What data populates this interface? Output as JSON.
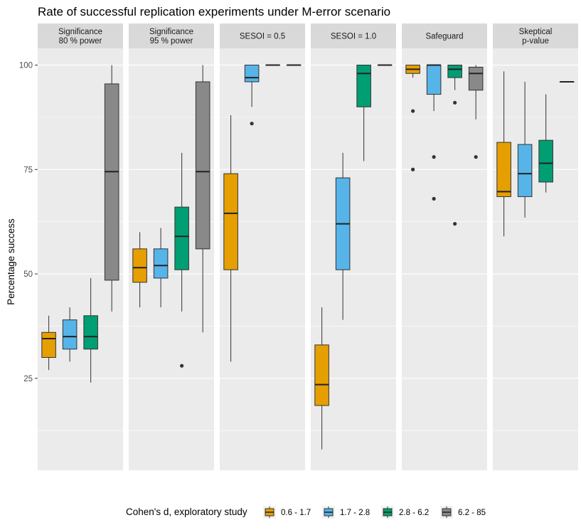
{
  "chart_data": {
    "type": "boxplot",
    "title": "Rate of successful replication experiments under M-error scenario",
    "ylabel": "Percentage success",
    "xlabel": "",
    "ylim": [
      3,
      104
    ],
    "yticks": [
      25,
      50,
      75,
      100
    ],
    "grid": true,
    "legend": {
      "title": "Cohen's d, exploratory study",
      "position": "bottom",
      "entries": [
        {
          "label": "0.6 - 1.7",
          "color": "#E69F00"
        },
        {
          "label": "1.7 - 2.8",
          "color": "#56B4E9"
        },
        {
          "label": "2.8 - 6.2",
          "color": "#009E73"
        },
        {
          "label": "6.2 - 85",
          "color": "#898989"
        }
      ]
    },
    "panels": [
      {
        "strip": [
          "Significance",
          "80 % power"
        ],
        "boxes": [
          {
            "group": "0.6 - 1.7",
            "whisker_low": 27,
            "q1": 30,
            "median": 34.5,
            "q3": 36,
            "whisker_high": 40,
            "outliers": []
          },
          {
            "group": "1.7 - 2.8",
            "whisker_low": 29,
            "q1": 32,
            "median": 35,
            "q3": 39,
            "whisker_high": 42,
            "outliers": []
          },
          {
            "group": "2.8 - 6.2",
            "whisker_low": 24,
            "q1": 32,
            "median": 35,
            "q3": 40,
            "whisker_high": 49,
            "outliers": []
          },
          {
            "group": "6.2 - 85",
            "whisker_low": 41,
            "q1": 48.5,
            "median": 74.5,
            "q3": 95.5,
            "whisker_high": 100,
            "outliers": []
          }
        ]
      },
      {
        "strip": [
          "Significance",
          "95 % power"
        ],
        "boxes": [
          {
            "group": "0.6 - 1.7",
            "whisker_low": 42,
            "q1": 48,
            "median": 51.5,
            "q3": 56,
            "whisker_high": 60,
            "outliers": []
          },
          {
            "group": "1.7 - 2.8",
            "whisker_low": 42,
            "q1": 49,
            "median": 52,
            "q3": 56,
            "whisker_high": 61,
            "outliers": []
          },
          {
            "group": "2.8 - 6.2",
            "whisker_low": 41,
            "q1": 51,
            "median": 59,
            "q3": 66,
            "whisker_high": 79,
            "outliers": [
              28
            ]
          },
          {
            "group": "6.2 - 85",
            "whisker_low": 36,
            "q1": 56,
            "median": 74.5,
            "q3": 96,
            "whisker_high": 100,
            "outliers": []
          }
        ]
      },
      {
        "strip": [
          "SESOI = 0.5"
        ],
        "boxes": [
          {
            "group": "0.6 - 1.7",
            "whisker_low": 29,
            "q1": 51,
            "median": 64.5,
            "q3": 74,
            "whisker_high": 88,
            "outliers": []
          },
          {
            "group": "1.7 - 2.8",
            "whisker_low": 90,
            "q1": 96,
            "median": 97,
            "q3": 100,
            "whisker_high": 100,
            "outliers": [
              86
            ]
          },
          {
            "group": "2.8 - 6.2",
            "whisker_low": 100,
            "q1": 100,
            "median": 100,
            "q3": 100,
            "whisker_high": 100,
            "outliers": []
          },
          {
            "group": "6.2 - 85",
            "whisker_low": 100,
            "q1": 100,
            "median": 100,
            "q3": 100,
            "whisker_high": 100,
            "outliers": []
          }
        ]
      },
      {
        "strip": [
          "SESOI = 1.0"
        ],
        "boxes": [
          {
            "group": "0.6 - 1.7",
            "whisker_low": 8,
            "q1": 18.5,
            "median": 23.5,
            "q3": 33,
            "whisker_high": 42,
            "outliers": []
          },
          {
            "group": "1.7 - 2.8",
            "whisker_low": 39,
            "q1": 51,
            "median": 62,
            "q3": 73,
            "whisker_high": 79,
            "outliers": []
          },
          {
            "group": "2.8 - 6.2",
            "whisker_low": 77,
            "q1": 90,
            "median": 98,
            "q3": 100,
            "whisker_high": 100,
            "outliers": []
          },
          {
            "group": "6.2 - 85",
            "whisker_low": 100,
            "q1": 100,
            "median": 100,
            "q3": 100,
            "whisker_high": 100,
            "outliers": []
          }
        ]
      },
      {
        "strip": [
          "Safeguard"
        ],
        "boxes": [
          {
            "group": "0.6 - 1.7",
            "whisker_low": 97,
            "q1": 98,
            "median": 99,
            "q3": 100,
            "whisker_high": 100,
            "outliers": [
              89,
              75
            ]
          },
          {
            "group": "1.7 - 2.8",
            "whisker_low": 89,
            "q1": 93,
            "median": 100,
            "q3": 100,
            "whisker_high": 100,
            "outliers": [
              78,
              68
            ]
          },
          {
            "group": "2.8 - 6.2",
            "whisker_low": 94,
            "q1": 97,
            "median": 99,
            "q3": 100,
            "whisker_high": 100,
            "outliers": [
              91,
              62
            ]
          },
          {
            "group": "6.2 - 85",
            "whisker_low": 87,
            "q1": 94,
            "median": 98,
            "q3": 99.5,
            "whisker_high": 100,
            "outliers": [
              78
            ]
          }
        ]
      },
      {
        "strip": [
          "Skeptical",
          "p-value"
        ],
        "boxes": [
          {
            "group": "0.6 - 1.7",
            "whisker_low": 59,
            "q1": 68.5,
            "median": 69.7,
            "q3": 81.5,
            "whisker_high": 98.5,
            "outliers": []
          },
          {
            "group": "1.7 - 2.8",
            "whisker_low": 63.5,
            "q1": 68.5,
            "median": 74,
            "q3": 81,
            "whisker_high": 96,
            "outliers": []
          },
          {
            "group": "2.8 - 6.2",
            "whisker_low": 69.5,
            "q1": 72,
            "median": 76.5,
            "q3": 82,
            "whisker_high": 93,
            "outliers": []
          },
          {
            "group": "6.2 - 85",
            "whisker_low": 96,
            "q1": 96,
            "median": 96,
            "q3": 96,
            "whisker_high": 96,
            "outliers": []
          }
        ]
      }
    ]
  }
}
